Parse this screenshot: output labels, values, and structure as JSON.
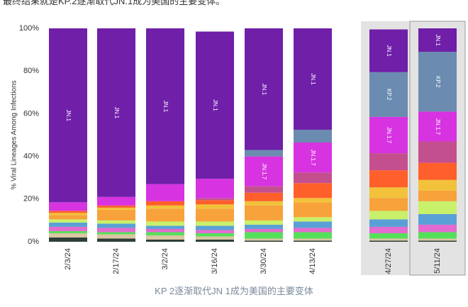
{
  "header": {
    "top_text": "最终结果就是KP.2逐渐取代JN.1成为美国的主要变体。"
  },
  "caption": "KP 2逐渐取代JN 1成为美国的主要变体",
  "chart_data": {
    "type": "bar",
    "stacked": true,
    "ylabel": "% Viral Lineages Among Infections",
    "ylim": [
      0,
      100
    ],
    "yticks": [
      "0%",
      "20%",
      "40%",
      "60%",
      "80%",
      "100%"
    ],
    "categories": [
      "2/3/24",
      "2/17/24",
      "3/2/24",
      "3/16/24",
      "3/30/24",
      "4/13/24",
      "4/27/24",
      "5/11/24"
    ],
    "highlighted_categories": [
      "4/27/24",
      "5/11/24"
    ],
    "series": [
      {
        "name": "",
        "color": "#2f3f3a",
        "values": [
          2,
          1.5,
          1,
          1,
          0.5,
          0.5,
          0.5,
          0.5
        ]
      },
      {
        "name": "",
        "color": "#d9c6a3",
        "values": [
          2,
          2,
          2,
          1.5,
          1,
          1,
          1,
          1
        ]
      },
      {
        "name": "",
        "color": "#55e05a",
        "values": [
          1,
          1,
          1.5,
          1.5,
          3,
          3,
          2.5,
          3
        ]
      },
      {
        "name": "",
        "color": "#e36ad0",
        "values": [
          2,
          2,
          1.5,
          1.5,
          1.5,
          2,
          3,
          3.5
        ]
      },
      {
        "name": "",
        "color": "#5aa0d6",
        "values": [
          2,
          2,
          1.5,
          2,
          2,
          3,
          3.5,
          5
        ]
      },
      {
        "name": "",
        "color": "#c9f06a",
        "values": [
          1.5,
          1.5,
          2,
          2,
          2,
          2,
          4,
          6
        ]
      },
      {
        "name": "",
        "color": "#f7a23a",
        "values": [
          2,
          5,
          6,
          6,
          7,
          7,
          6,
          5
        ]
      },
      {
        "name": "",
        "color": "#f2c23a",
        "values": [
          1,
          1,
          1.5,
          2,
          2,
          2,
          5,
          5
        ]
      },
      {
        "name": "",
        "color": "#ff5f2a",
        "values": [
          1,
          1,
          2,
          2,
          4,
          7,
          8,
          8
        ]
      },
      {
        "name": "",
        "color": "#c44f8f",
        "values": [
          0,
          0,
          0,
          1,
          3,
          5,
          8,
          10
        ]
      },
      {
        "name": "JN.1.7",
        "color": "#d733e0",
        "values": [
          4,
          4,
          8,
          9,
          14,
          14,
          17,
          14
        ]
      },
      {
        "name": "KP.2",
        "color": "#6b8bb0",
        "values": [
          0,
          0,
          0,
          0,
          3,
          6,
          21,
          28
        ]
      },
      {
        "name": "JN.1",
        "color": "#6f1fa8",
        "values": [
          81.5,
          79,
          73,
          69,
          57,
          47.5,
          20,
          11
        ]
      }
    ],
    "segment_labels": [
      [
        "JN.1"
      ],
      [
        "JN.1"
      ],
      [
        "JN.1"
      ],
      [
        "JN.1"
      ],
      [
        "JN.1.7",
        "JN.1"
      ],
      [
        "JN.1.7",
        "JN.1"
      ],
      [
        "JN.1.7",
        "KP.2",
        "JN.1"
      ],
      [
        "JN.1.7",
        "KP.2",
        "JN.1"
      ]
    ]
  }
}
